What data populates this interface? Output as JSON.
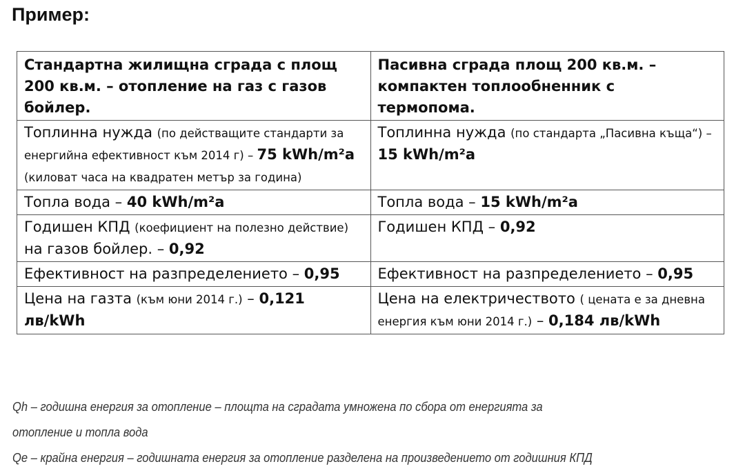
{
  "title": "Пример:",
  "table": {
    "headers": [
      "Стандартна жилищна сграда с площ 200 кв.м. – отопление на газ с газов бойлер.",
      "Пасивна сграда площ 200 кв.м. – компактен топлообненник с термопома."
    ],
    "rows": [
      [
        [
          {
            "t": "Топлинна нужда ",
            "s": "n"
          },
          {
            "t": "(по действащите стандарти за енергийна ефективност към 2014 г) – ",
            "s": "s"
          },
          {
            "t": "75 kWh/m²a",
            "s": "b"
          },
          {
            "t": " (киловат часа на квадратен метър за година)",
            "s": "s"
          }
        ],
        [
          {
            "t": "Топлинна нужда ",
            "s": "n"
          },
          {
            "t": "(по стандарта „Пасивна къща“) – ",
            "s": "s"
          },
          {
            "t": "15 kWh/m²a",
            "s": "b"
          }
        ]
      ],
      [
        [
          {
            "t": "Топла вода – ",
            "s": "n"
          },
          {
            "t": "40 kWh/m²a",
            "s": "b"
          }
        ],
        [
          {
            "t": "Топла вода – ",
            "s": "n"
          },
          {
            "t": "15 kWh/m²a",
            "s": "b"
          }
        ]
      ],
      [
        [
          {
            "t": "Годишен КПД ",
            "s": "n"
          },
          {
            "t": "(коефициент на полезно действие)",
            "s": "s"
          },
          {
            "t": " на газов бойлер. – ",
            "s": "n"
          },
          {
            "t": "0,92",
            "s": "b"
          }
        ],
        [
          {
            "t": "Годишен КПД – ",
            "s": "n"
          },
          {
            "t": "0,92",
            "s": "b"
          }
        ]
      ],
      [
        [
          {
            "t": "Ефективност на разпределението – ",
            "s": "n"
          },
          {
            "t": "0,95",
            "s": "b"
          }
        ],
        [
          {
            "t": "Ефективност на разпределението – ",
            "s": "n"
          },
          {
            "t": "0,95",
            "s": "b"
          }
        ]
      ],
      [
        [
          {
            "t": "Цена на газта ",
            "s": "n"
          },
          {
            "t": "(към юни 2014 г.)",
            "s": "s"
          },
          {
            "t": " – ",
            "s": "n"
          },
          {
            "t": "0,121 лв/kWh",
            "s": "b"
          }
        ],
        [
          {
            "t": "Цена на електричеството ",
            "s": "n"
          },
          {
            "t": "( цената е за дневна енергия към юни 2014 г.)",
            "s": "s"
          },
          {
            "t": " – ",
            "s": "n"
          },
          {
            "t": "0,184 лв/kWh",
            "s": "b"
          }
        ]
      ]
    ]
  },
  "notes": [
    "Qh – годишна енергия за отопление – площта на сградата умножена по сбора от енергията за",
    "отопление и топла вода",
    "Qe – крайна енергия – годишната енергия за отопление разделена на произведението от годишния КПД"
  ]
}
